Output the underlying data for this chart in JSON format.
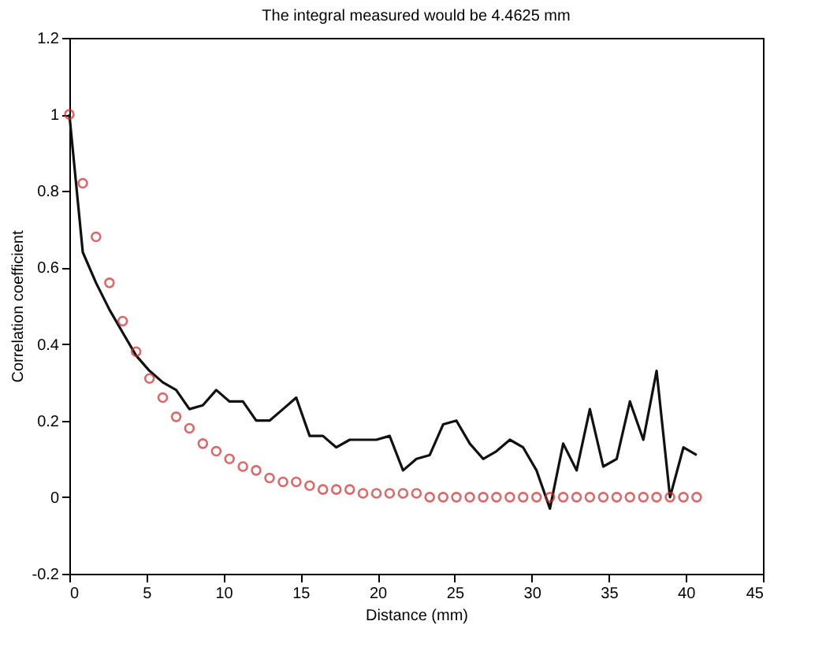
{
  "chart_data": {
    "type": "line",
    "title": "The integral measured would be 4.4625 mm",
    "xlabel": "Distance (mm)",
    "ylabel": "Correlation coefficient",
    "x": [
      0,
      0.87,
      1.73,
      2.6,
      3.46,
      4.33,
      5.2,
      6.06,
      6.93,
      7.79,
      8.66,
      9.53,
      10.39,
      11.26,
      12.12,
      12.99,
      13.86,
      14.72,
      15.59,
      16.45,
      17.32,
      18.19,
      19.05,
      19.92,
      20.78,
      21.65,
      22.52,
      23.38,
      24.25,
      25.11,
      25.98,
      26.85,
      27.71,
      28.58,
      29.44,
      30.31,
      31.18,
      32.04,
      32.91,
      33.77,
      34.64,
      35.51,
      36.37,
      37.24,
      38.1,
      38.97,
      39.84,
      40.7
    ],
    "series": [
      {
        "color": "#111111",
        "marker": "none",
        "line_style": "solid",
        "values": [
          1.0,
          0.64,
          0.56,
          0.49,
          0.43,
          0.37,
          0.33,
          0.3,
          0.28,
          0.23,
          0.24,
          0.28,
          0.25,
          0.25,
          0.2,
          0.2,
          0.23,
          0.26,
          0.16,
          0.16,
          0.13,
          0.15,
          0.15,
          0.15,
          0.16,
          0.07,
          0.1,
          0.11,
          0.19,
          0.2,
          0.14,
          0.1,
          0.12,
          0.15,
          0.13,
          0.07,
          -0.03,
          0.14,
          0.07,
          0.23,
          0.08,
          0.1,
          0.25,
          0.15,
          0.33,
          0.0,
          0.13,
          0.11
        ]
      },
      {
        "type": "scatter",
        "color": "#cc2a2a",
        "marker": "circle",
        "values": [
          1.0,
          0.82,
          0.68,
          0.56,
          0.46,
          0.38,
          0.31,
          0.26,
          0.21,
          0.18,
          0.14,
          0.12,
          0.1,
          0.08,
          0.07,
          0.05,
          0.04,
          0.04,
          0.03,
          0.02,
          0.02,
          0.02,
          0.01,
          0.01,
          0.01,
          0.01,
          0.01,
          0.0,
          0.0,
          0.0,
          0.0,
          0.0,
          0.0,
          0.0,
          0.0,
          0.0,
          0.0,
          0.0,
          0.0,
          0.0,
          0.0,
          0.0,
          0.0,
          0.0,
          0.0,
          0.0,
          0.0,
          0.0
        ]
      }
    ],
    "xlim": [
      0,
      45
    ],
    "xticks": [
      0,
      5,
      10,
      15,
      20,
      25,
      30,
      35,
      40,
      45
    ],
    "ylim": [
      -0.2,
      1.2
    ],
    "yticks": [
      -0.2,
      0,
      0.2,
      0.4,
      0.6,
      0.8,
      1,
      1.2
    ],
    "grid": false
  }
}
